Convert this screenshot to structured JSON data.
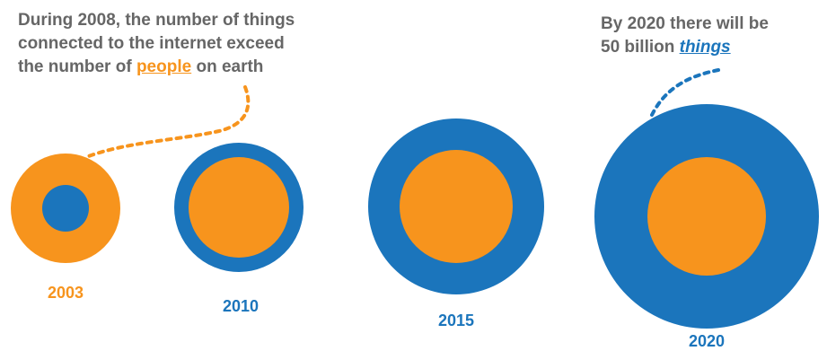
{
  "captions": {
    "left": {
      "line1": "During 2008, the number of things",
      "line2": "connected to the internet  exceed",
      "line3_before": "the number of ",
      "line3_highlight": "people",
      "line3_after": " on earth"
    },
    "right": {
      "line1": "By 2020 there will be",
      "line2_before": "50 billion ",
      "line2_highlight": "things"
    }
  },
  "years": [
    {
      "label": "2003",
      "color": "#F7941D"
    },
    {
      "label": "2010",
      "color": "#1B75BC"
    },
    {
      "label": "2015",
      "color": "#1B75BC"
    },
    {
      "label": "2020",
      "color": "#1B75BC"
    }
  ],
  "colors": {
    "orange": "#F7941D",
    "blue": "#1B75BC",
    "text_gray": "#666666"
  }
}
